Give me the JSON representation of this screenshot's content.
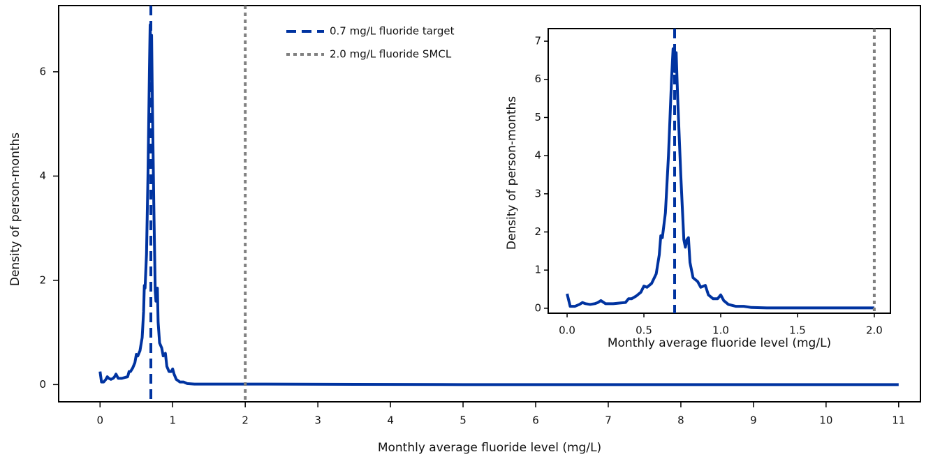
{
  "chart_data": [
    {
      "type": "line",
      "x_label": "Monthly average fluoride level (mg/L)",
      "y_label": "Density of person-months",
      "x": [
        0,
        0.02,
        0.05,
        0.08,
        0.1,
        0.12,
        0.15,
        0.18,
        0.2,
        0.22,
        0.25,
        0.3,
        0.35,
        0.38,
        0.4,
        0.42,
        0.45,
        0.48,
        0.5,
        0.52,
        0.55,
        0.58,
        0.6,
        0.61,
        0.62,
        0.64,
        0.66,
        0.68,
        0.69,
        0.7,
        0.71,
        0.72,
        0.74,
        0.76,
        0.77,
        0.78,
        0.79,
        0.8,
        0.82,
        0.85,
        0.87,
        0.9,
        0.92,
        0.95,
        0.98,
        1.0,
        1.02,
        1.05,
        1.1,
        1.15,
        1.2,
        1.3,
        1.5,
        2.0,
        5,
        11
      ],
      "series": [
        {
          "color": "#0033a0",
          "values": [
            0.25,
            0.05,
            0.05,
            0.1,
            0.15,
            0.12,
            0.1,
            0.12,
            0.15,
            0.2,
            0.12,
            0.12,
            0.14,
            0.15,
            0.25,
            0.25,
            0.32,
            0.42,
            0.58,
            0.55,
            0.65,
            0.9,
            1.4,
            1.9,
            1.85,
            2.5,
            4.0,
            6.0,
            6.9,
            6.2,
            6.7,
            5.5,
            3.5,
            1.8,
            1.6,
            1.8,
            1.85,
            1.2,
            0.8,
            0.7,
            0.55,
            0.6,
            0.35,
            0.25,
            0.25,
            0.3,
            0.2,
            0.1,
            0.05,
            0.05,
            0.02,
            0.01,
            0.01,
            0.01,
            0,
            0
          ]
        }
      ],
      "reference_lines": [
        {
          "name": "0.7 mg/L fluoride target",
          "value": 0.7,
          "color": "#0033a0",
          "style": "dashed"
        },
        {
          "name": "2.0 mg/L fluoride SMCL",
          "value": 2.0,
          "color": "#808080",
          "style": "dotted"
        }
      ],
      "xlim": [
        -0.57,
        11.3
      ],
      "ylim": [
        -0.33,
        7.27
      ],
      "xticks": [
        0,
        1,
        2,
        3,
        4,
        5,
        6,
        7,
        8,
        9,
        10,
        11
      ],
      "yticks": [
        0,
        2,
        4,
        6
      ]
    },
    {
      "type": "line",
      "x_label": "Monthly average fluoride level (mg/L)",
      "y_label": "Density of person-months",
      "x": [
        0,
        0.02,
        0.05,
        0.08,
        0.1,
        0.12,
        0.15,
        0.18,
        0.2,
        0.22,
        0.25,
        0.3,
        0.35,
        0.38,
        0.4,
        0.42,
        0.45,
        0.48,
        0.5,
        0.52,
        0.55,
        0.58,
        0.6,
        0.61,
        0.62,
        0.64,
        0.66,
        0.68,
        0.69,
        0.7,
        0.71,
        0.72,
        0.74,
        0.76,
        0.77,
        0.78,
        0.79,
        0.8,
        0.82,
        0.85,
        0.87,
        0.9,
        0.92,
        0.95,
        0.98,
        1.0,
        1.02,
        1.05,
        1.1,
        1.15,
        1.2,
        1.3,
        1.5,
        2.0
      ],
      "series": [
        {
          "color": "#0033a0",
          "values": [
            0.38,
            0.05,
            0.05,
            0.1,
            0.15,
            0.12,
            0.1,
            0.12,
            0.15,
            0.2,
            0.12,
            0.12,
            0.14,
            0.15,
            0.25,
            0.25,
            0.32,
            0.42,
            0.58,
            0.55,
            0.65,
            0.9,
            1.4,
            1.9,
            1.85,
            2.5,
            4.0,
            6.0,
            6.8,
            6.2,
            6.7,
            5.5,
            3.5,
            1.8,
            1.6,
            1.8,
            1.85,
            1.2,
            0.8,
            0.7,
            0.55,
            0.6,
            0.35,
            0.25,
            0.25,
            0.35,
            0.2,
            0.1,
            0.05,
            0.05,
            0.02,
            0.01,
            0.01,
            0.01
          ]
        }
      ],
      "reference_lines": [
        {
          "value": 0.7,
          "color": "#0033a0",
          "style": "dashed"
        },
        {
          "value": 2.0,
          "color": "#808080",
          "style": "dotted"
        }
      ],
      "xlim": [
        -0.123,
        2.105
      ],
      "ylim": [
        -0.13,
        7.33
      ],
      "xticks": [
        {
          "value": 0,
          "label": "0.0"
        },
        {
          "value": 0.5,
          "label": "0.5"
        },
        {
          "value": 1,
          "label": "1.0"
        },
        {
          "value": 1.5,
          "label": "1.5"
        },
        {
          "value": 2,
          "label": "2.0"
        }
      ],
      "yticks": [
        0,
        1,
        2,
        3,
        4,
        5,
        6,
        7
      ]
    }
  ]
}
